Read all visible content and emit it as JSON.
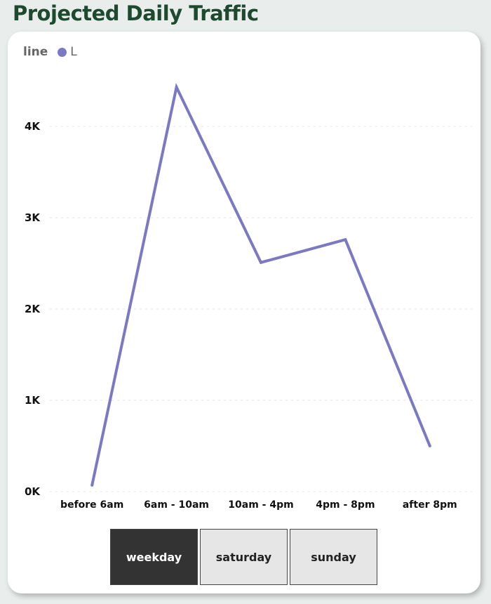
{
  "title": "Projected Daily Traffic",
  "legend": {
    "title": "line",
    "series_name": "L",
    "color": "#7b79c2"
  },
  "chart_data": {
    "type": "line",
    "categories": [
      "before 6am",
      "6am - 10am",
      "10am - 4pm",
      "4pm - 8pm",
      "after 8pm"
    ],
    "series": [
      {
        "name": "L",
        "values": [
          70,
          4430,
          2510,
          2760,
          500
        ],
        "color": "#7b79c2"
      }
    ],
    "ylim": [
      0,
      4500
    ],
    "yticks": [
      0,
      1000,
      2000,
      3000,
      4000
    ],
    "ytick_labels": [
      "0K",
      "1K",
      "2K",
      "3K",
      "4K"
    ],
    "grid": true,
    "legend_position": "top-left"
  },
  "slicer": {
    "options": [
      "weekday",
      "saturday",
      "sunday"
    ],
    "selected": "weekday"
  }
}
